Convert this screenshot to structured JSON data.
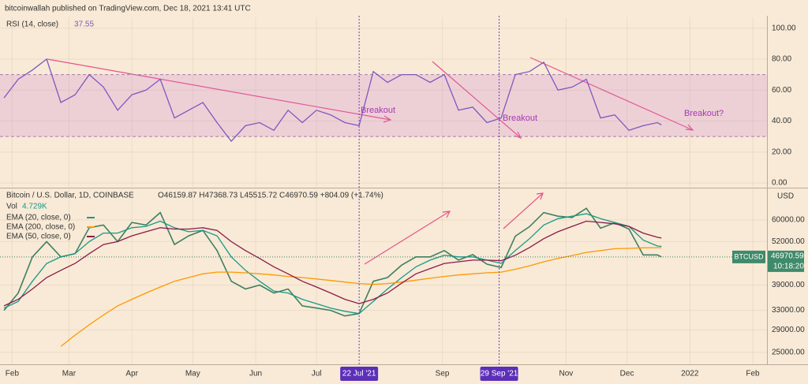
{
  "header": {
    "title": "bitcoinwallah published on TradingView.com, Dec 18, 2021 13:41 UTC"
  },
  "chart_data": [
    {
      "type": "line",
      "title": "RSI (14, close)",
      "value_text": "37.55",
      "x": [
        "2021-01-28",
        "2021-02-04",
        "2021-02-11",
        "2021-02-18",
        "2021-02-25",
        "2021-03-04",
        "2021-03-11",
        "2021-03-18",
        "2021-03-25",
        "2021-04-01",
        "2021-04-08",
        "2021-04-15",
        "2021-04-22",
        "2021-04-29",
        "2021-05-06",
        "2021-05-13",
        "2021-05-20",
        "2021-05-27",
        "2021-06-03",
        "2021-06-10",
        "2021-06-17",
        "2021-06-24",
        "2021-07-01",
        "2021-07-08",
        "2021-07-15",
        "2021-07-22",
        "2021-07-29",
        "2021-08-05",
        "2021-08-12",
        "2021-08-19",
        "2021-08-26",
        "2021-09-02",
        "2021-09-09",
        "2021-09-16",
        "2021-09-23",
        "2021-09-30",
        "2021-10-07",
        "2021-10-14",
        "2021-10-21",
        "2021-10-28",
        "2021-11-04",
        "2021-11-11",
        "2021-11-18",
        "2021-11-25",
        "2021-12-02",
        "2021-12-09",
        "2021-12-16",
        "2021-12-18"
      ],
      "series": [
        {
          "name": "RSI",
          "color": "#7e57c2",
          "values": [
            55,
            67,
            73,
            80,
            52,
            57,
            70,
            62,
            47,
            57,
            60,
            67,
            42,
            47,
            52,
            39,
            27,
            37,
            39,
            34,
            47,
            39,
            47,
            44,
            39,
            37,
            72,
            65,
            70,
            70,
            65,
            70,
            47,
            49,
            39,
            42,
            70,
            72,
            78,
            60,
            62,
            67,
            42,
            44,
            34,
            37,
            39,
            37.55
          ]
        }
      ],
      "band": [
        30,
        70
      ],
      "xlim": [
        "2021-01-26",
        "2022-02-08"
      ],
      "ylim": [
        -2.5,
        107
      ],
      "yticks": [
        {
          "value": 100,
          "label": "100.00"
        },
        {
          "value": 80,
          "label": "80.00"
        },
        {
          "value": 60,
          "label": "60.00"
        },
        {
          "value": 40,
          "label": "40.00"
        },
        {
          "value": 20,
          "label": "20.00"
        },
        {
          "value": 0,
          "label": "0.00"
        }
      ],
      "annotations": [
        "Breakout",
        "Breakout",
        "Breakout?"
      ]
    },
    {
      "type": "line",
      "title": "Bitcoin / U.S. Dollar, 1D, COINBASE",
      "ohlc_text": "O46159.87 H47368.73 L45515.72 C46970.59 +804.09 (+1.74%)",
      "volume_label": "Vol",
      "volume_text": "4.729K",
      "x": [
        "2021-01-28",
        "2021-02-04",
        "2021-02-11",
        "2021-02-18",
        "2021-02-25",
        "2021-03-04",
        "2021-03-11",
        "2021-03-18",
        "2021-03-25",
        "2021-04-01",
        "2021-04-08",
        "2021-04-15",
        "2021-04-22",
        "2021-04-29",
        "2021-05-06",
        "2021-05-13",
        "2021-05-20",
        "2021-05-27",
        "2021-06-03",
        "2021-06-10",
        "2021-06-17",
        "2021-06-24",
        "2021-07-01",
        "2021-07-08",
        "2021-07-15",
        "2021-07-22",
        "2021-07-29",
        "2021-08-05",
        "2021-08-12",
        "2021-08-19",
        "2021-08-26",
        "2021-09-02",
        "2021-09-09",
        "2021-09-16",
        "2021-09-23",
        "2021-09-30",
        "2021-10-07",
        "2021-10-14",
        "2021-10-21",
        "2021-10-28",
        "2021-11-04",
        "2021-11-11",
        "2021-11-18",
        "2021-11-25",
        "2021-12-02",
        "2021-12-09",
        "2021-12-16",
        "2021-12-18"
      ],
      "series": [
        {
          "name": "Bitcoin / U.S. Dollar, 1D, COINBASE",
          "color": "#3f7f62",
          "values": [
            33000,
            37000,
            47000,
            52000,
            47000,
            48000,
            57000,
            58000,
            52000,
            59000,
            58000,
            63000,
            51000,
            54000,
            56000,
            49000,
            40000,
            38000,
            39000,
            37000,
            38000,
            34000,
            33500,
            33000,
            31800,
            32300,
            40000,
            41000,
            44500,
            47000,
            47000,
            49000,
            46000,
            47700,
            44800,
            43800,
            53900,
            57400,
            63000,
            61500,
            61000,
            64800,
            56800,
            58900,
            56500,
            47600,
            47600,
            46970.59
          ]
        },
        {
          "name": "EMA (20, close, 0)",
          "color": "#17998a",
          "values": [
            33500,
            35000,
            40000,
            45000,
            47000,
            48000,
            52000,
            55000,
            55000,
            57000,
            57500,
            59500,
            57000,
            55500,
            56000,
            54000,
            47000,
            43000,
            40000,
            37500,
            37000,
            35500,
            34500,
            33500,
            32800,
            32300,
            35000,
            38000,
            41000,
            44000,
            46000,
            47500,
            47000,
            47000,
            46000,
            45000,
            49000,
            53000,
            58000,
            60500,
            61500,
            62500,
            60500,
            59000,
            57500,
            52500,
            50500,
            50353.12
          ]
        },
        {
          "name": "EMA (200, close, 0)",
          "color": "#ff9800",
          "values": [
            null,
            null,
            null,
            null,
            26000,
            28000,
            30000,
            32000,
            34000,
            35500,
            37000,
            38500,
            40000,
            41000,
            42000,
            42500,
            42500,
            42300,
            42000,
            41700,
            41300,
            41000,
            40600,
            40200,
            39800,
            39400,
            39200,
            39400,
            39800,
            40300,
            40800,
            41300,
            41700,
            42000,
            42300,
            42500,
            43300,
            44300,
            45500,
            46500,
            47400,
            48400,
            49000,
            49600,
            49700,
            49900,
            49950,
            49960
          ]
        },
        {
          "name": "EMA (50, close, 0)",
          "color": "#8b1a4a",
          "values": [
            34000,
            35500,
            38000,
            41000,
            43000,
            45000,
            48000,
            51000,
            52000,
            54000,
            55500,
            57000,
            56500,
            56500,
            57000,
            56000,
            52000,
            49000,
            46500,
            44000,
            42000,
            40000,
            38500,
            37000,
            35500,
            34500,
            35500,
            37000,
            39500,
            42000,
            43500,
            45000,
            45500,
            46000,
            46000,
            45800,
            47500,
            50000,
            53000,
            55500,
            57500,
            59500,
            59000,
            58500,
            57500,
            55000,
            53500,
            53217.49
          ]
        }
      ],
      "log_scale": true,
      "xlim": [
        "2021-01-26",
        "2022-02-08"
      ],
      "ylim": [
        23100,
        73500
      ],
      "yticks": [
        {
          "value": 60000,
          "label": "60000.00"
        },
        {
          "value": 52000,
          "label": "52000.00"
        },
        {
          "value": 39000,
          "label": "39000.00"
        },
        {
          "value": 33000,
          "label": "33000.00"
        },
        {
          "value": 29000,
          "label": "29000.00"
        },
        {
          "value": 25000,
          "label": "25000.00"
        }
      ],
      "currency": "USD",
      "symbol": "BTCUSD",
      "last_price": 46970.59,
      "last_price_label": "46970.59",
      "countdown": "10:18:20",
      "xticks": [
        {
          "value": "2021-02-01",
          "label": "Feb"
        },
        {
          "value": "2021-03-01",
          "label": "Mar"
        },
        {
          "value": "2021-04-01",
          "label": "Apr"
        },
        {
          "value": "2021-05-01",
          "label": "May"
        },
        {
          "value": "2021-06-01",
          "label": "Jun"
        },
        {
          "value": "2021-07-01",
          "label": "Jul"
        },
        {
          "value": "2021-09-01",
          "label": "Sep"
        },
        {
          "value": "2021-11-01",
          "label": "Nov"
        },
        {
          "value": "2021-12-01",
          "label": "Dec"
        },
        {
          "value": "2022-01-01",
          "label": "2022"
        },
        {
          "value": "2022-02-01",
          "label": "Feb"
        }
      ],
      "markers": [
        {
          "date": "2021-07-22",
          "label": "22 Jul '21"
        },
        {
          "date": "2021-09-29",
          "label": "29 Sep '21"
        }
      ]
    }
  ]
}
